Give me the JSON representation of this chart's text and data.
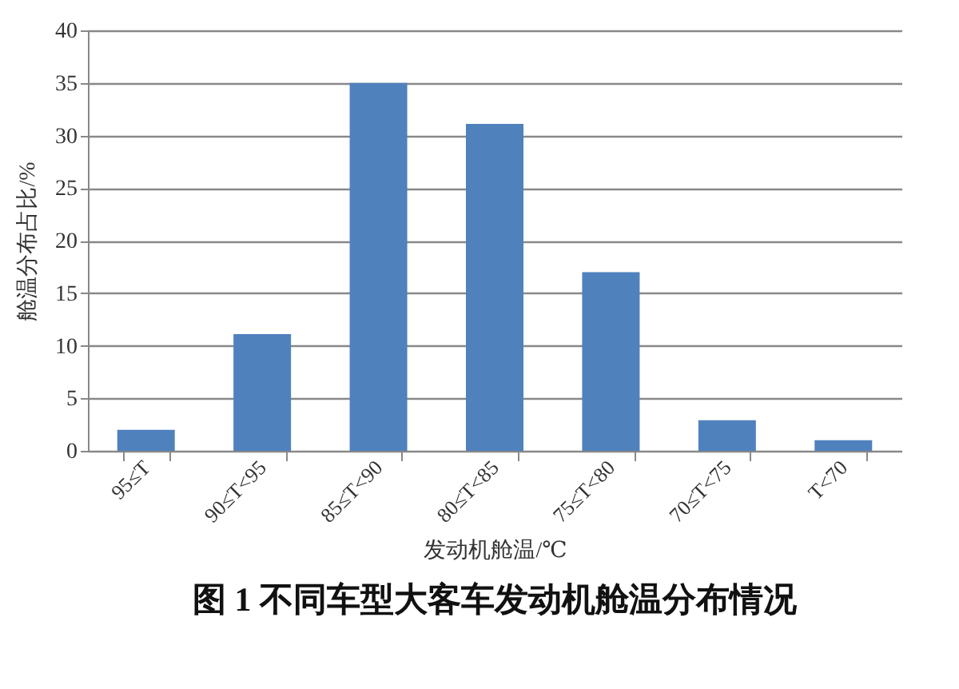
{
  "chart_data": {
    "type": "bar",
    "title": "图 1  不同车型大客车发动机舱温分布情况",
    "xlabel": "发动机舱温/℃",
    "ylabel": "舱温分布占比/%",
    "categories": [
      "95≤T",
      "90≤T<95",
      "85≤T<90",
      "80≤T<85",
      "75≤T<80",
      "70≤T<75",
      "T<70"
    ],
    "values": [
      2,
      11.1,
      35,
      31.1,
      17,
      2.9,
      1
    ],
    "color": "#4f81bd",
    "ylim": [
      0,
      40
    ],
    "yticks": [
      0,
      5,
      10,
      15,
      20,
      25,
      30,
      35,
      40
    ],
    "grid": "y"
  }
}
